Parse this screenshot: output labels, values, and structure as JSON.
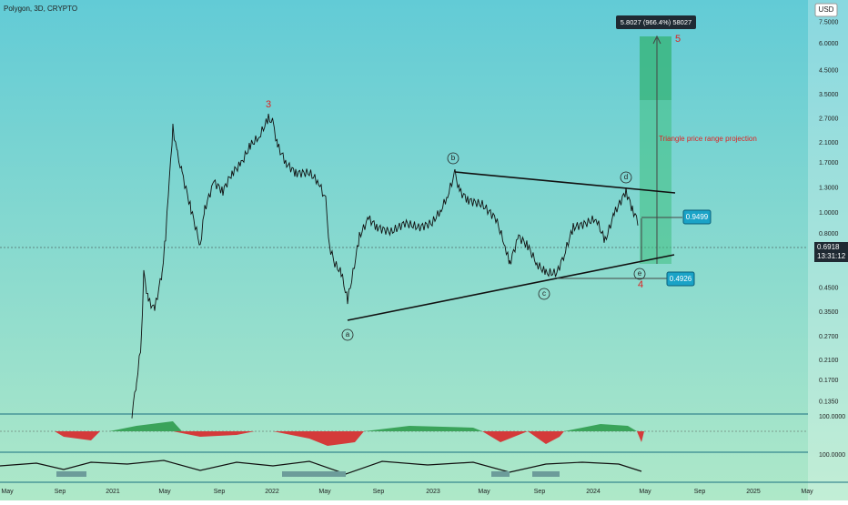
{
  "header": {
    "symbol": "Polygon, 3D, CRYPTO",
    "currency": "USD"
  },
  "price_axis": {
    "labels": [
      "7.5000",
      "6.0000",
      "4.5000",
      "3.5000",
      "2.7000",
      "2.1000",
      "1.7000",
      "1.3000",
      "1.0000",
      "0.8000",
      "0.4500",
      "0.3500",
      "0.2700",
      "0.2100",
      "0.1700",
      "0.1350"
    ]
  },
  "price_tag": {
    "price": "0.6918",
    "countdown": "13:31:12"
  },
  "indicator_axis": [
    "100.0000",
    "100.0000"
  ],
  "time_axis": [
    "May",
    "Sep",
    "2021",
    "May",
    "Sep",
    "2022",
    "May",
    "Sep",
    "2023",
    "May",
    "Sep",
    "2024",
    "May",
    "Sep",
    "2025",
    "May"
  ],
  "annotations": {
    "projection": "5.8027 (966.4%) 58027",
    "note": "Triangle price range projection",
    "upper_level": "0.9499",
    "lower_level": "0.4926"
  },
  "waves": {
    "w3": "3",
    "w5": "5",
    "w4": "4",
    "a": "a",
    "b": "b",
    "c": "c",
    "d": "d",
    "e": "e"
  }
}
